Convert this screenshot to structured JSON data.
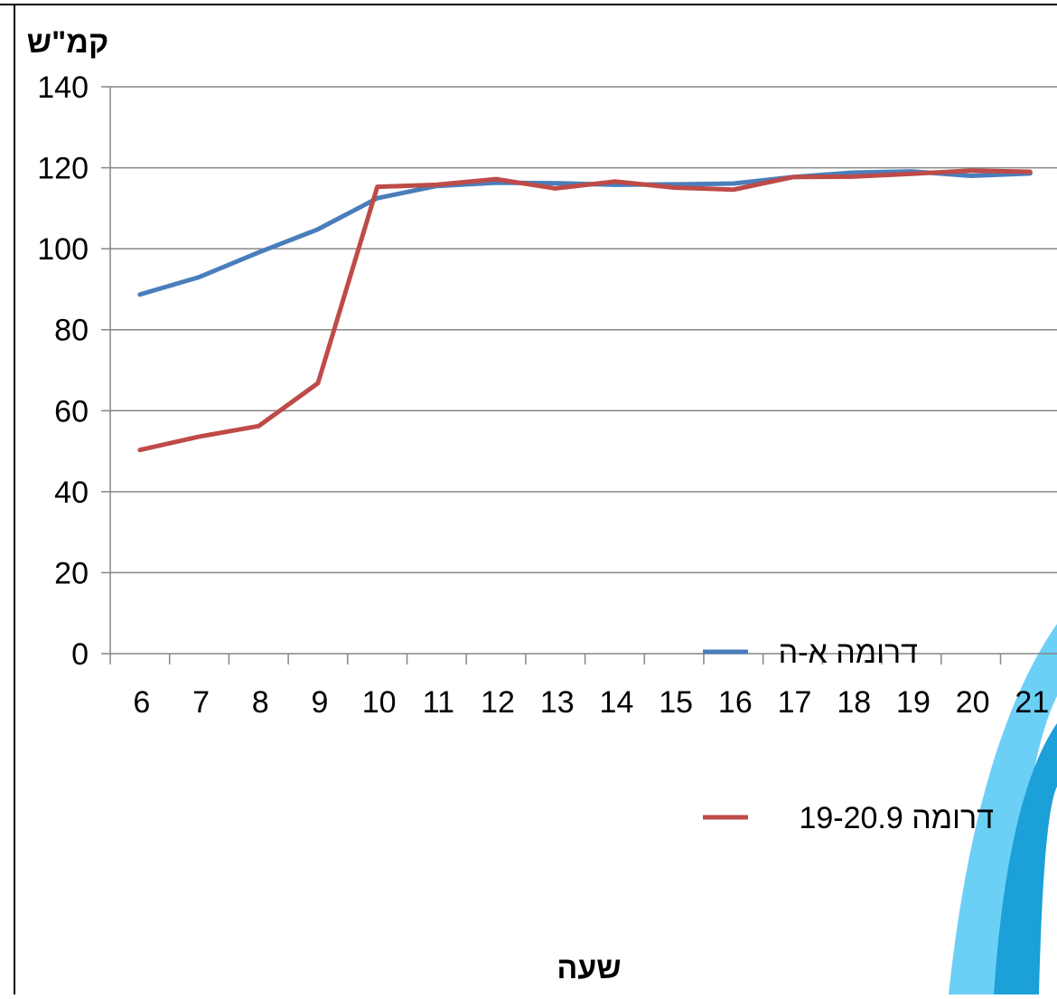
{
  "chart_data": {
    "type": "line",
    "ylabel": "קמ\"ש",
    "xlabel": "שעה",
    "categories": [
      "6",
      "7",
      "8",
      "9",
      "10",
      "11",
      "12",
      "13",
      "14",
      "15",
      "16",
      "17",
      "18",
      "19",
      "20",
      "21"
    ],
    "ylim": [
      0,
      140
    ],
    "yticks": [
      "0",
      "20",
      "40",
      "60",
      "80",
      "100",
      "120",
      "140"
    ],
    "grid": true,
    "legend_position": "bottom-right",
    "series": [
      {
        "name": "דרומה א-ה",
        "color": "#4A7EBB",
        "values": [
          88.7,
          93,
          99.1,
          104.8,
          112.5,
          115.5,
          116.3,
          116.2,
          115.8,
          115.9,
          116.1,
          117.7,
          118.8,
          119.1,
          118,
          118.6
        ]
      },
      {
        "name": "דרומה 19-20.9",
        "color": "#BE4B48",
        "values": [
          50.3,
          53.6,
          56.2,
          66.8,
          115.3,
          115.8,
          117.2,
          114.9,
          116.6,
          115.1,
          114.6,
          117.7,
          117.8,
          118.5,
          119.3,
          119
        ]
      }
    ]
  }
}
